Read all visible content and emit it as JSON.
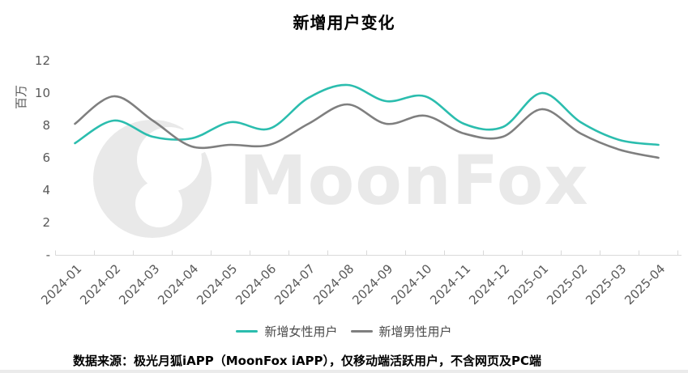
{
  "title": "新增用户变化",
  "y_axis": {
    "unit_label": "百万",
    "ticks": [
      {
        "label": "12",
        "value": 12
      },
      {
        "label": "10",
        "value": 10
      },
      {
        "label": "8",
        "value": 8
      },
      {
        "label": "6",
        "value": 6
      },
      {
        "label": "4",
        "value": 4
      },
      {
        "label": "2",
        "value": 2
      },
      {
        "label": "-",
        "value": 0
      }
    ]
  },
  "chart_data": {
    "type": "line",
    "title": "新增用户变化",
    "xlabel": "",
    "ylabel": "百万",
    "ylim": [
      0,
      12
    ],
    "grid": false,
    "legend_position": "bottom",
    "smooth": true,
    "categories": [
      "2024-01",
      "2024-02",
      "2024-03",
      "2024-04",
      "2024-05",
      "2024-06",
      "2024-07",
      "2024-08",
      "2024-09",
      "2024-10",
      "2024-11",
      "2024-12",
      "2025-01",
      "2025-02",
      "2025-03",
      "2025-04"
    ],
    "series": [
      {
        "name": "新增女性用户",
        "color": "#2bbdae",
        "values": [
          6.9,
          8.3,
          7.3,
          7.2,
          8.2,
          7.8,
          9.7,
          10.5,
          9.5,
          9.8,
          8.1,
          7.9,
          10.0,
          8.2,
          7.1,
          6.8
        ]
      },
      {
        "name": "新增男性用户",
        "color": "#7f7f7f",
        "values": [
          8.1,
          9.8,
          8.3,
          6.7,
          6.8,
          6.8,
          8.1,
          9.3,
          8.1,
          8.6,
          7.5,
          7.3,
          9.0,
          7.5,
          6.5,
          6.0
        ]
      }
    ]
  },
  "watermark": {
    "text": "MoonFox",
    "color": "#e9e9e9"
  },
  "axis_style": {
    "line_color": "#d9d9d9",
    "tick_label_color": "#595959"
  },
  "footer": {
    "text": "数据来源：极光月狐iAPP（MoonFox iAPP），仅移动端活跃用户，不含网页及PC端"
  }
}
